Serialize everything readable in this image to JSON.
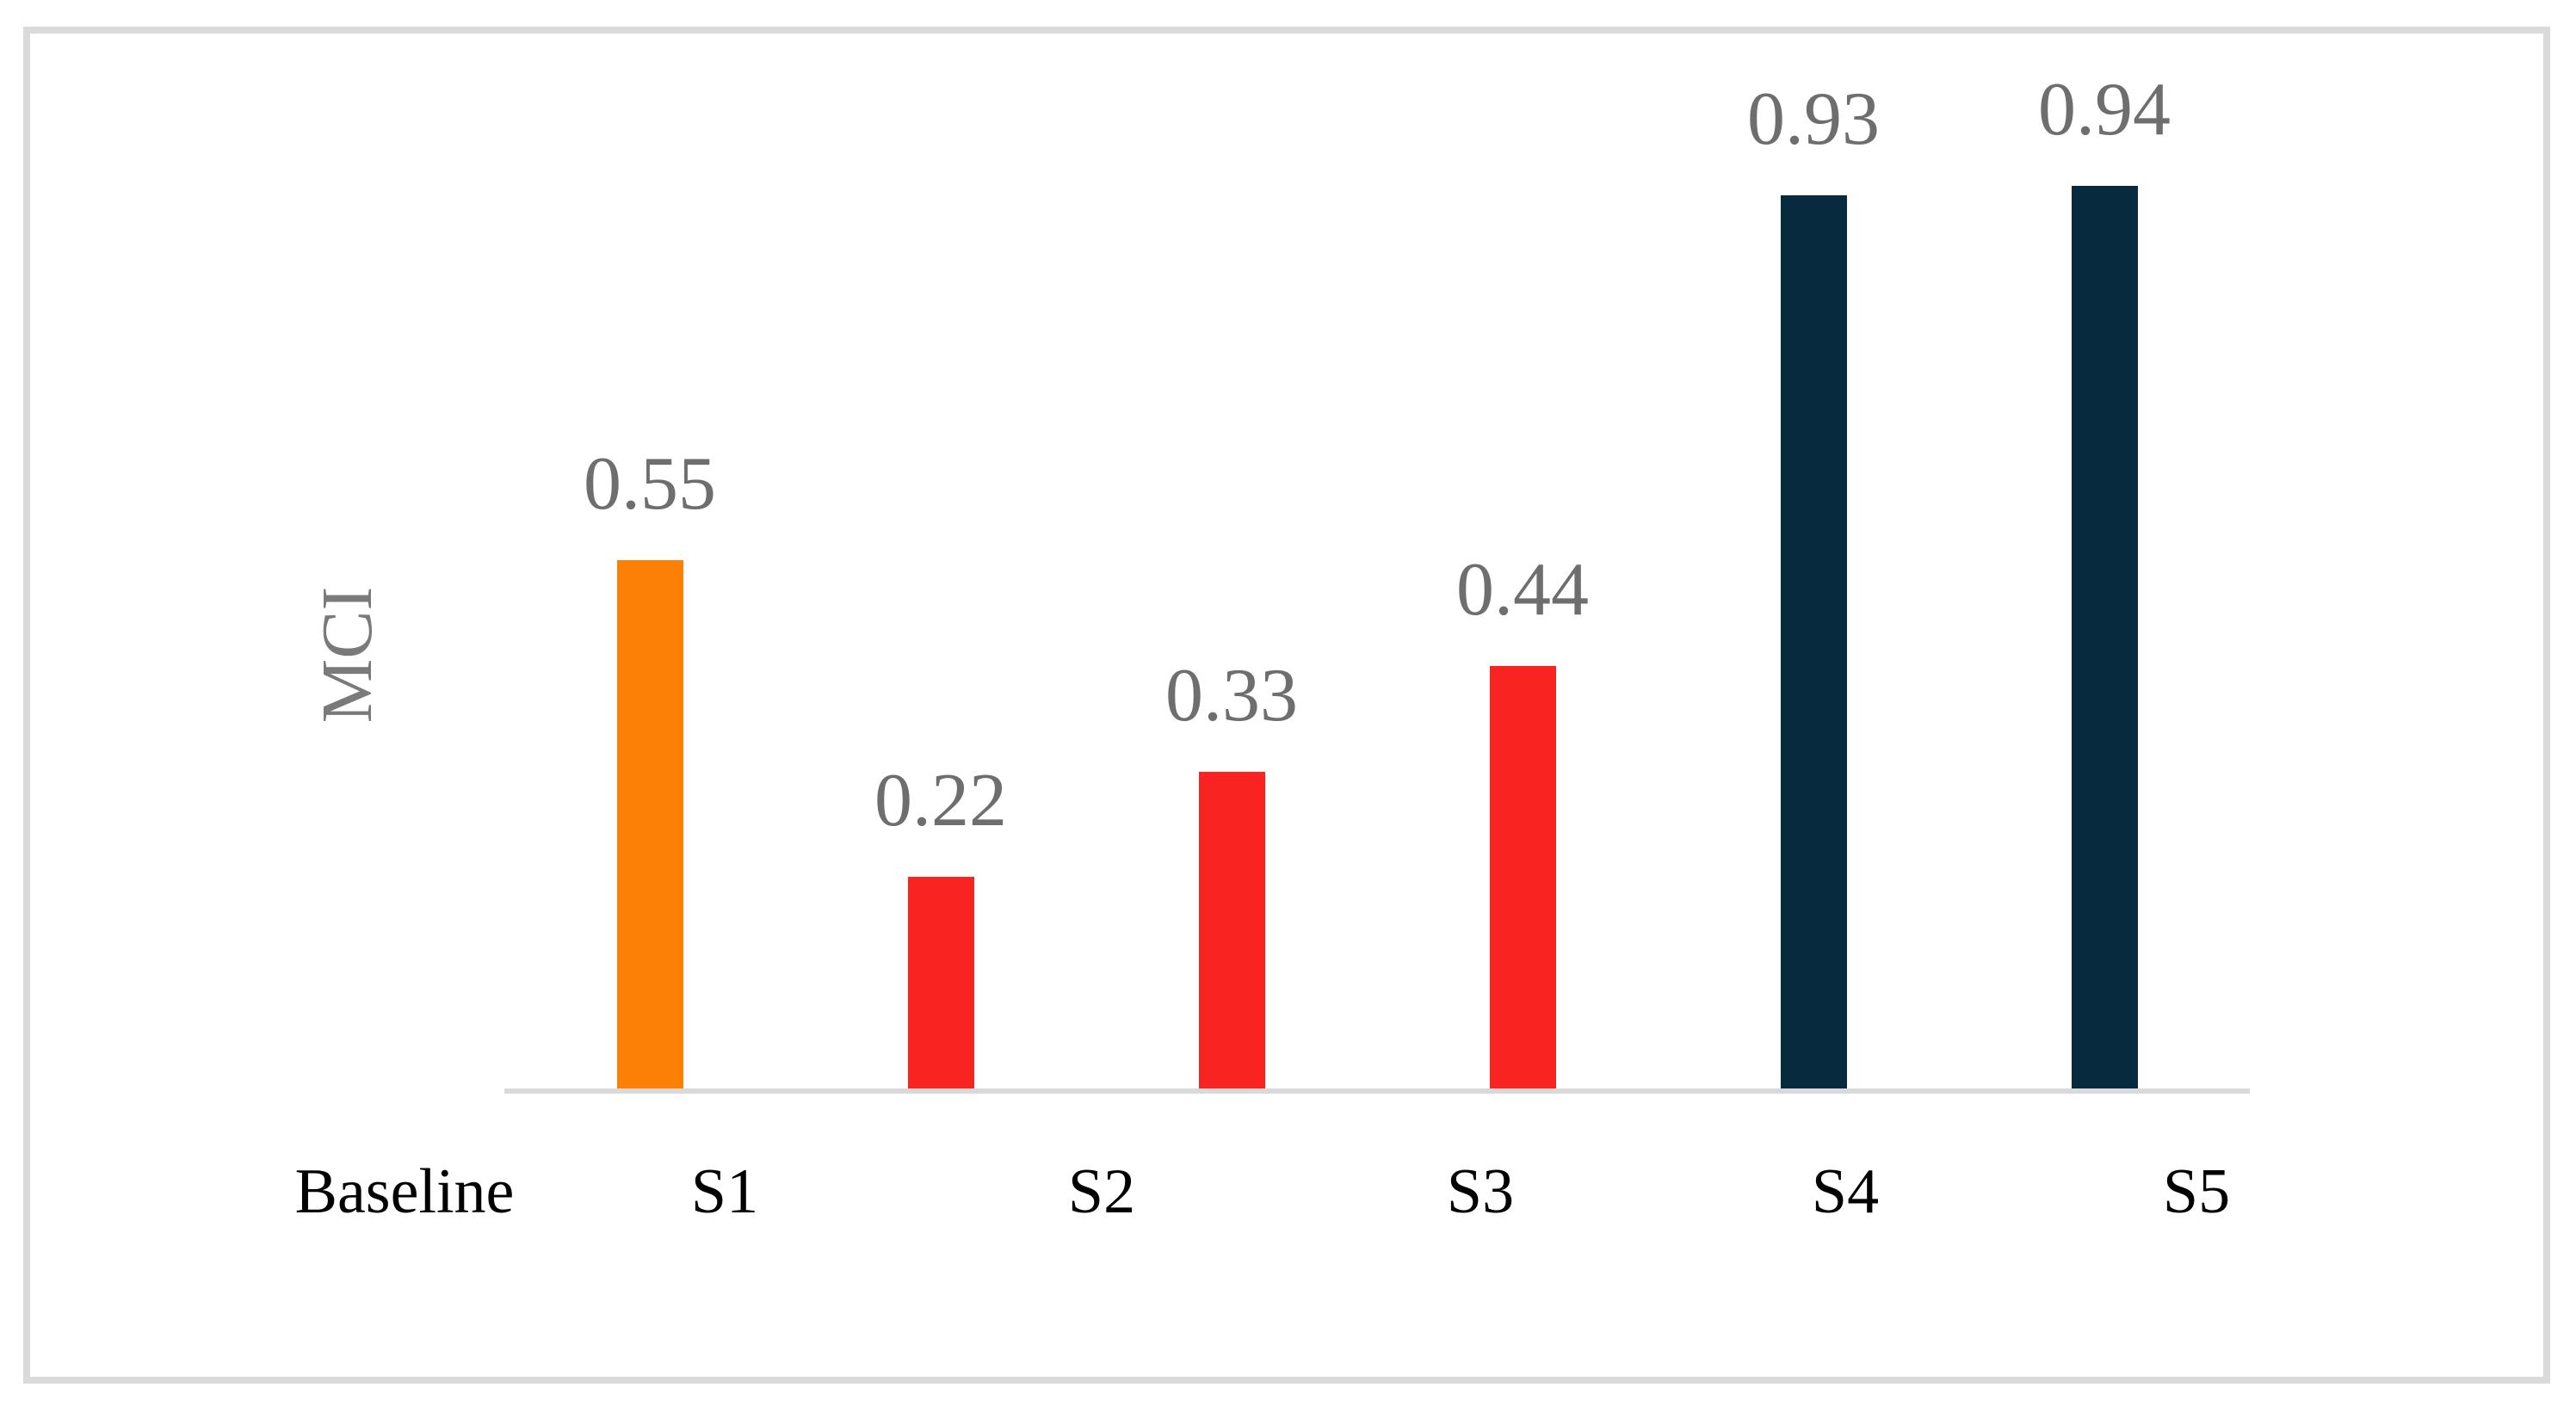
{
  "figure": {
    "background": "#FFFFFF",
    "border_color": "#DADADA"
  },
  "chart_data": {
    "type": "bar",
    "title": "",
    "categories": [
      "Baseline",
      "S1",
      "S2",
      "S3",
      "S4",
      "S5"
    ],
    "values": [
      0.55,
      0.22,
      0.33,
      0.44,
      0.93,
      0.94
    ],
    "value_labels": [
      "0.55",
      "0.22",
      "0.33",
      "0.44",
      "0.93",
      "0.94"
    ],
    "bar_colors": [
      "#FB8005",
      "#F92322",
      "#F92322",
      "#F92322",
      "#072A3F",
      "#072A3F"
    ],
    "xlabel": "",
    "ylabel": "MCI",
    "ylim": [
      0,
      1.1
    ],
    "grid": false,
    "legend": false,
    "axis_line_color": "#D9D9D9",
    "value_label_color": "#6E6E6E",
    "ylabel_color": "#7A7A7A",
    "category_label_color": "#000000"
  }
}
